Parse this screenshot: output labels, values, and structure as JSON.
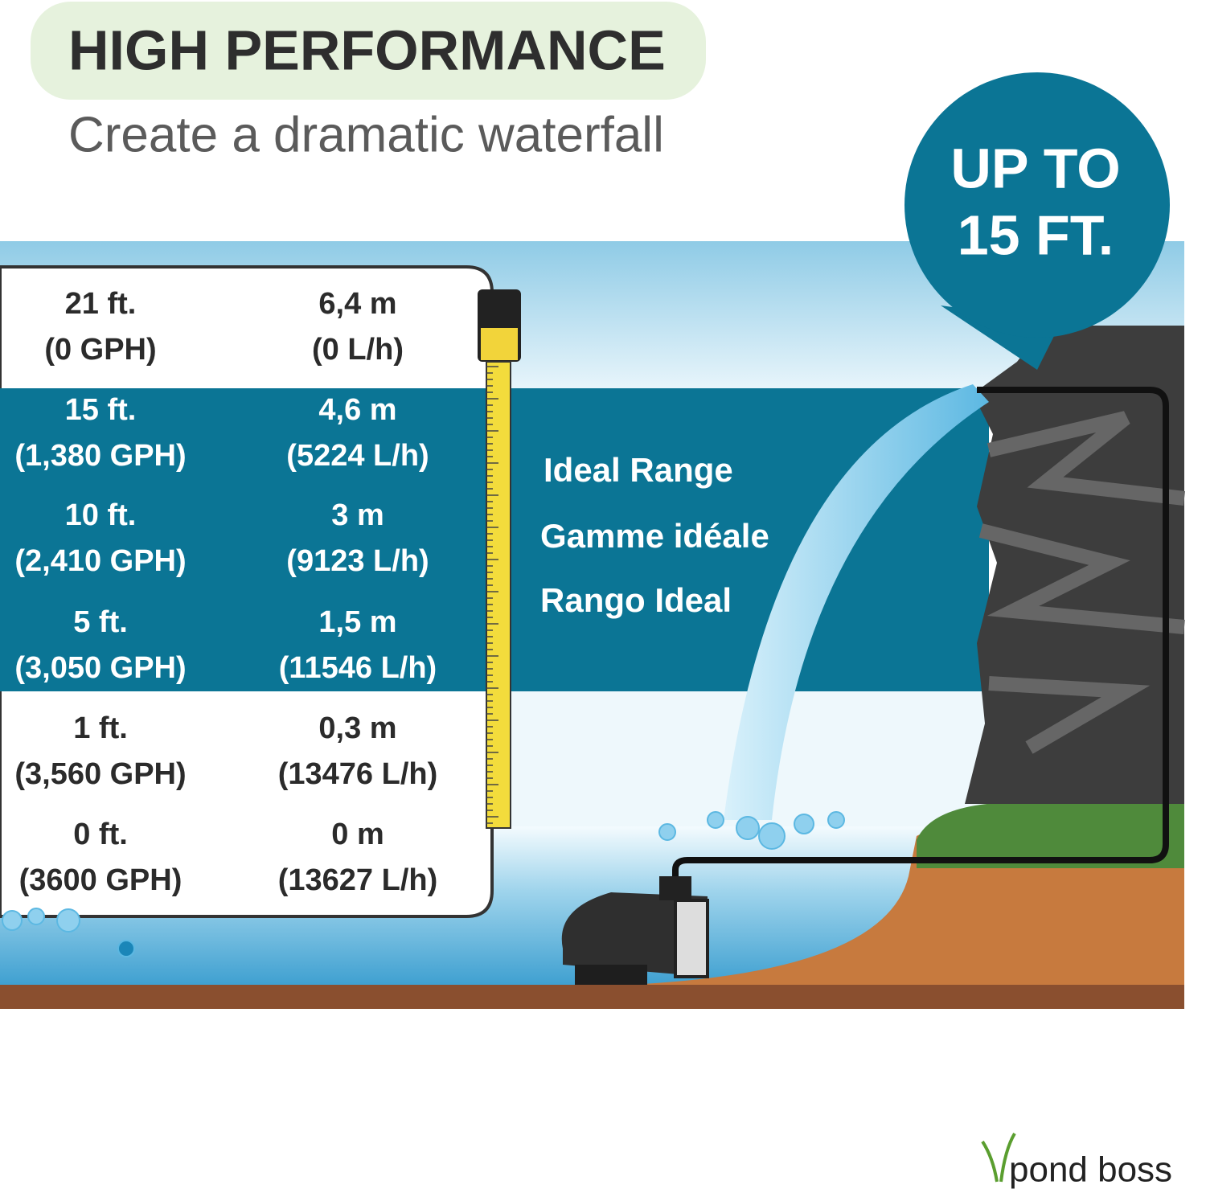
{
  "header": {
    "title": "HIGH PERFORMANCE",
    "subtitle": "Create a dramatic waterfall"
  },
  "badge": {
    "lines": [
      "UP TO",
      "15 FT."
    ]
  },
  "table": {
    "rows": [
      [
        "21 ft.",
        "(0 GPH)",
        "6,4 m",
        "(0 L/h)"
      ],
      [
        "15 ft.",
        "(1,380 GPH)",
        "4,6 m",
        "(5224 L/h)"
      ],
      [
        "10 ft.",
        "(2,410 GPH)",
        "3 m",
        "(9123 L/h)"
      ],
      [
        "5 ft.",
        "(3,050 GPH)",
        "1,5 m",
        "(11546 L/h)"
      ],
      [
        "1 ft.",
        "(3,560 GPH)",
        "0,3 m",
        "(13476 L/h)"
      ],
      [
        "0 ft.",
        "(3600 GPH)",
        "0 m",
        "(13627 L/h)"
      ]
    ]
  },
  "ideal_range": {
    "labels": [
      "Ideal Range",
      "Gamme idéale",
      "Rango Ideal"
    ]
  },
  "logo": {
    "text": "pond boss"
  }
}
